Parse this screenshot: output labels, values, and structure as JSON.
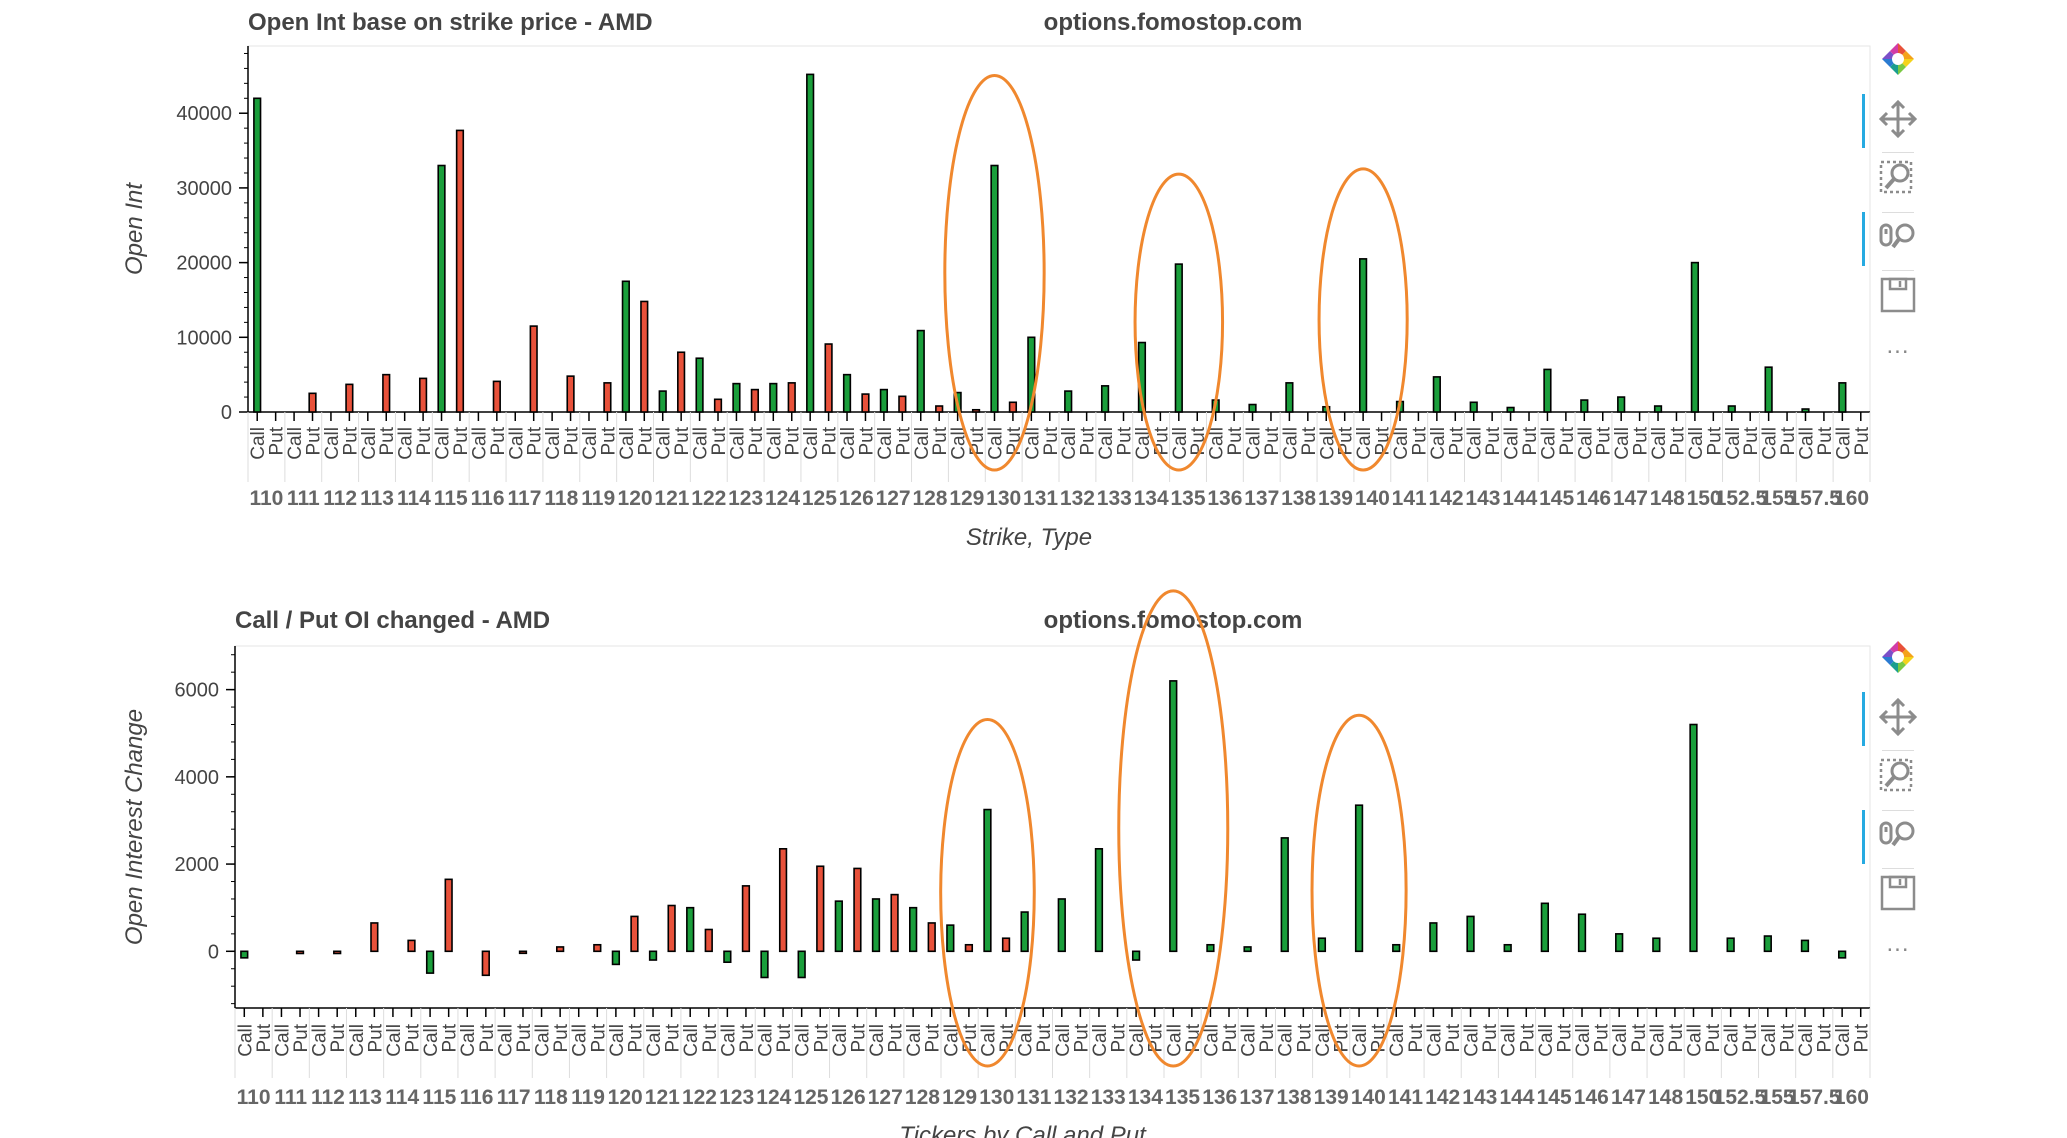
{
  "chart_data": [
    {
      "type": "bar",
      "title": "Open Int base on strike price - AMD",
      "subtitle": "options.fomostop.com",
      "xlabel": "Strike, Type",
      "ylabel": "Open Int",
      "ylim": [
        0,
        49000
      ],
      "yticks": [
        0,
        10000,
        20000,
        30000,
        40000
      ],
      "types": [
        "Call",
        "Put"
      ],
      "categories": [
        "110",
        "111",
        "112",
        "113",
        "114",
        "115",
        "116",
        "117",
        "118",
        "119",
        "120",
        "121",
        "122",
        "123",
        "124",
        "125",
        "126",
        "127",
        "128",
        "129",
        "130",
        "131",
        "132",
        "133",
        "134",
        "135",
        "136",
        "137",
        "138",
        "139",
        "140",
        "141",
        "142",
        "143",
        "144",
        "145",
        "146",
        "147",
        "148",
        "150",
        "152.5",
        "155",
        "157.5",
        "160"
      ],
      "series": [
        {
          "type": "Call",
          "color": "#1a9e3b",
          "values": [
            42000,
            0,
            0,
            0,
            0,
            33000,
            0,
            0,
            0,
            0,
            17500,
            2800,
            7200,
            3800,
            3800,
            45200,
            5000,
            3000,
            10900,
            2600,
            33000,
            10000,
            2800,
            3500,
            9300,
            19800,
            1600,
            1000,
            3900,
            700,
            20500,
            1400,
            4700,
            1300,
            600,
            5700,
            1600,
            2000,
            800,
            20000,
            800,
            6000,
            400,
            3900
          ]
        },
        {
          "type": "Put",
          "color": "#e8513a",
          "values": [
            0,
            2500,
            3700,
            5000,
            4500,
            37700,
            4100,
            11500,
            4800,
            3900,
            14800,
            8000,
            1700,
            3000,
            3900,
            9100,
            2400,
            2100,
            800,
            300,
            1300,
            0,
            0,
            0,
            0,
            0,
            0,
            0,
            0,
            0,
            0,
            0,
            0,
            0,
            0,
            0,
            0,
            0,
            0,
            0,
            0,
            0,
            0,
            0
          ]
        }
      ],
      "highlights": [
        "130",
        "135",
        "140"
      ],
      "grid": false,
      "highlight_color": "#f0882e"
    },
    {
      "type": "bar",
      "title": "Call / Put OI changed - AMD",
      "subtitle": "options.fomostop.com",
      "xlabel": "Tickers by Call and Put",
      "ylabel": "Open Interest Change",
      "ylim": [
        -1300,
        7000
      ],
      "yticks": [
        0,
        2000,
        4000,
        6000
      ],
      "types": [
        "Call",
        "Put"
      ],
      "categories": [
        "110",
        "111",
        "112",
        "113",
        "114",
        "115",
        "116",
        "117",
        "118",
        "119",
        "120",
        "121",
        "122",
        "123",
        "124",
        "125",
        "126",
        "127",
        "128",
        "129",
        "130",
        "131",
        "132",
        "133",
        "134",
        "135",
        "136",
        "137",
        "138",
        "139",
        "140",
        "141",
        "142",
        "143",
        "144",
        "145",
        "146",
        "147",
        "148",
        "150",
        "152.5",
        "155",
        "157.5",
        "160"
      ],
      "series": [
        {
          "type": "Call",
          "color": "#1a9e3b",
          "values": [
            -150,
            0,
            0,
            0,
            0,
            -500,
            0,
            0,
            0,
            0,
            -300,
            -200,
            1000,
            -250,
            -600,
            -600,
            1150,
            1200,
            1000,
            600,
            3250,
            900,
            1200,
            2350,
            -200,
            6200,
            150,
            100,
            2600,
            300,
            3350,
            150,
            650,
            800,
            150,
            1100,
            850,
            400,
            300,
            5200,
            300,
            350,
            250,
            -150
          ]
        },
        {
          "type": "Put",
          "color": "#e8513a",
          "values": [
            0,
            -50,
            -50,
            650,
            250,
            1650,
            -550,
            -30,
            100,
            150,
            800,
            1050,
            500,
            1500,
            2350,
            1950,
            1900,
            1300,
            650,
            150,
            300,
            0,
            0,
            0,
            0,
            0,
            0,
            0,
            0,
            0,
            0,
            0,
            0,
            0,
            0,
            0,
            0,
            0,
            0,
            0,
            0,
            0,
            0,
            0
          ]
        }
      ],
      "highlights": [
        "130",
        "135",
        "140"
      ],
      "grid": false,
      "highlight_color": "#f0882e"
    }
  ],
  "toolbar": {
    "tools": [
      {
        "name": "bokeh-logo",
        "label": "Bokeh"
      },
      {
        "name": "pan-tool",
        "label": "Pan",
        "active": true
      },
      {
        "name": "box-zoom-tool",
        "label": "Box Zoom"
      },
      {
        "name": "wheel-zoom-tool",
        "label": "Wheel Zoom",
        "active": true
      },
      {
        "name": "save-tool",
        "label": "Save"
      }
    ],
    "more": "..."
  }
}
